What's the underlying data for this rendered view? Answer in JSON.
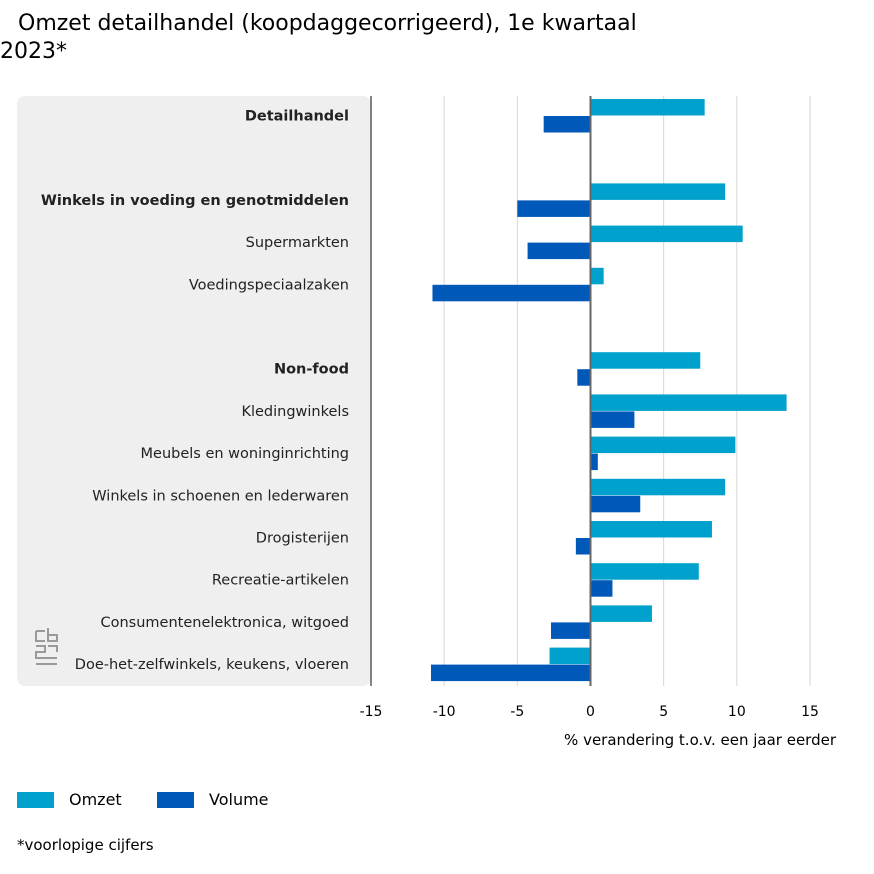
{
  "title": {
    "line1": "Omzet detailhandel (koopdaggecorrigeerd), 1e kwartaal",
    "line2": "2023*"
  },
  "footnote": "*voorlopige cijfers",
  "colors": {
    "omzet": "#00a1cd",
    "volume": "#0058b8",
    "panel": "#efefef",
    "grid": "#d6d6d6",
    "zero": "#666666"
  },
  "logo": {
    "icon": "cbs-logo-icon"
  },
  "chart_data": {
    "type": "bar",
    "orientation": "horizontal",
    "title": "Omzet detailhandel (koopdaggecorrigeerd), 1e kwartaal 2023*",
    "xlabel": "% verandering t.o.v. een jaar eerder",
    "ylabel": "",
    "xlim": [
      -15,
      15
    ],
    "xticks": [
      -15,
      -10,
      -5,
      0,
      5,
      10,
      15
    ],
    "grid": true,
    "legend_position": "bottom-left",
    "rows": 14,
    "categories": [
      {
        "label": "Detailhandel",
        "bold": true,
        "row": 0
      },
      {
        "label": "Winkels in voeding en genotmiddelen",
        "bold": true,
        "row": 2
      },
      {
        "label": "Supermarkten",
        "bold": false,
        "row": 3
      },
      {
        "label": "Voedingspeciaalzaken",
        "bold": false,
        "row": 4
      },
      {
        "label": "Non-food",
        "bold": true,
        "row": 6
      },
      {
        "label": "Kledingwinkels",
        "bold": false,
        "row": 7
      },
      {
        "label": "Meubels en woninginrichting",
        "bold": false,
        "row": 8
      },
      {
        "label": "Winkels in schoenen en lederwaren",
        "bold": false,
        "row": 9
      },
      {
        "label": "Drogisterijen",
        "bold": false,
        "row": 10
      },
      {
        "label": "Recreatie-artikelen",
        "bold": false,
        "row": 11
      },
      {
        "label": "Consumentenelektronica, witgoed",
        "bold": false,
        "row": 12
      },
      {
        "label": "Doe-het-zelfwinkels, keukens, vloeren",
        "bold": false,
        "row": 13
      }
    ],
    "series": [
      {
        "name": "Omzet",
        "key": "omzet",
        "values": [
          7.8,
          9.2,
          10.4,
          0.9,
          7.5,
          13.4,
          9.9,
          9.2,
          8.3,
          7.4,
          4.2,
          -2.8
        ]
      },
      {
        "name": "Volume",
        "key": "volume",
        "values": [
          -3.2,
          -5.0,
          -4.3,
          -10.8,
          -0.9,
          3.0,
          0.5,
          3.4,
          -1.0,
          1.5,
          -2.7,
          -10.9
        ]
      }
    ]
  }
}
